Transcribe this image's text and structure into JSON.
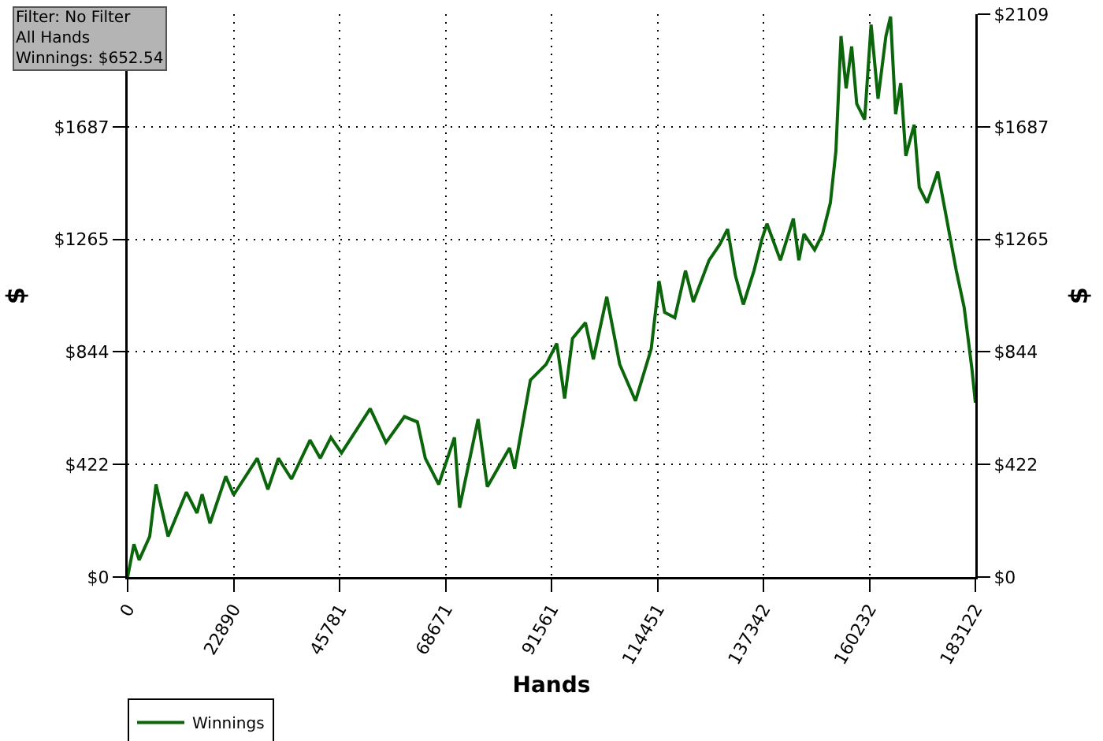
{
  "chart_data": {
    "type": "line",
    "xlabel": "Hands",
    "ylabel": "$",
    "y2label": "$",
    "annotations": [
      "Filter: No Filter",
      "All Hands",
      "Winnings: $652.54"
    ],
    "xlim": [
      0,
      183122
    ],
    "xticks": [
      0,
      22890,
      45781,
      68671,
      91561,
      114451,
      137342,
      160232,
      183122
    ],
    "ylim": [
      0,
      2109
    ],
    "yticks": [
      {
        "value": 0,
        "label": "$0"
      },
      {
        "value": 422,
        "label": "$422"
      },
      {
        "value": 844,
        "label": "$844"
      },
      {
        "value": 1265,
        "label": "$1265"
      },
      {
        "value": 1687,
        "label": "$1687"
      }
    ],
    "y2lim": [
      0,
      2109
    ],
    "y2ticks": [
      {
        "value": 0,
        "label": "$0"
      },
      {
        "value": 422,
        "label": "$422"
      },
      {
        "value": 844,
        "label": "$844"
      },
      {
        "value": 1265,
        "label": "$1265"
      },
      {
        "value": 1687,
        "label": "$1687"
      },
      {
        "value": 2109,
        "label": "$2109"
      }
    ],
    "grid": true,
    "legend": "bottom left",
    "line_style": "solid",
    "marker": "none",
    "series": [
      {
        "name": "Winnings",
        "color": "#0b660b",
        "x": [
          0,
          1360,
          2490,
          4770,
          6130,
          8740,
          12700,
          14980,
          16100,
          17800,
          21200,
          22900,
          28000,
          30300,
          32570,
          35400,
          39400,
          41600,
          43900,
          46200,
          52400,
          55800,
          59800,
          62600,
          64300,
          67200,
          70600,
          71700,
          75700,
          77700,
          82500,
          83600,
          87000,
          90400,
          92700,
          94400,
          96100,
          98900,
          100600,
          103500,
          106300,
          109700,
          113100,
          114800,
          116000,
          118200,
          120500,
          122200,
          125600,
          127900,
          129600,
          131300,
          133000,
          135300,
          137000,
          138100,
          141000,
          143800,
          145000,
          146100,
          148400,
          150100,
          151800,
          153000,
          154100,
          155200,
          156400,
          157500,
          159200,
          160600,
          162100,
          163800,
          164800,
          165900,
          167000,
          168100,
          169900,
          171000,
          172700,
          175000,
          176700,
          179000,
          180700,
          182400,
          183122
        ],
        "values": [
          0,
          123,
          64,
          152,
          347,
          152,
          318,
          240,
          310,
          201,
          377,
          308,
          445,
          328,
          445,
          367,
          513,
          445,
          523,
          465,
          631,
          504,
          601,
          581,
          445,
          347,
          523,
          260,
          592,
          338,
          484,
          406,
          738,
          797,
          875,
          669,
          894,
          953,
          816,
          1050,
          797,
          660,
          855,
          1109,
          992,
          972,
          1148,
          1031,
          1187,
          1246,
          1304,
          1129,
          1021,
          1148,
          1265,
          1324,
          1187,
          1343,
          1187,
          1285,
          1226,
          1285,
          1402,
          1597,
          2027,
          1831,
          1988,
          1773,
          1714,
          2070,
          1792,
          2027,
          2100,
          1734,
          1851,
          1578,
          1695,
          1460,
          1402,
          1519,
          1363,
          1148,
          1011,
          777,
          653
        ]
      }
    ]
  }
}
